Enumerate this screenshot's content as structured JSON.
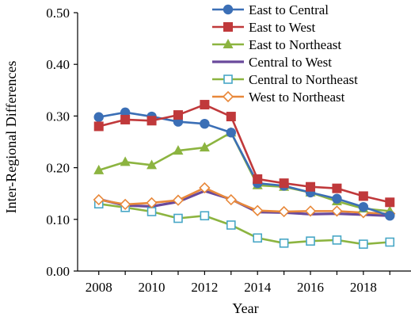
{
  "chart_data": {
    "type": "line",
    "xlabel": "Year",
    "ylabel": "Inter-Regional Differences",
    "x": [
      2008,
      2009,
      2010,
      2011,
      2012,
      2013,
      2014,
      2015,
      2016,
      2017,
      2018,
      2019
    ],
    "xlim": [
      2007.2,
      2019.8
    ],
    "ylim": [
      0,
      0.5
    ],
    "x_ticks": [
      "2008",
      "2010",
      "2012",
      "2014",
      "2016",
      "2018"
    ],
    "y_ticks": [
      "0.00",
      "0.10",
      "0.20",
      "0.30",
      "0.40",
      "0.50"
    ],
    "grid": false,
    "legend_position": "top-right",
    "series": [
      {
        "name": "East to Central",
        "color": "#3B6FB6",
        "marker": "circle",
        "values": [
          0.298,
          0.307,
          0.299,
          0.289,
          0.285,
          0.268,
          0.17,
          0.165,
          0.152,
          0.14,
          0.124,
          0.107
        ]
      },
      {
        "name": "East to West",
        "color": "#C0393B",
        "marker": "square",
        "values": [
          0.28,
          0.293,
          0.291,
          0.302,
          0.322,
          0.299,
          0.178,
          0.17,
          0.163,
          0.16,
          0.145,
          0.133
        ]
      },
      {
        "name": "East to Northeast",
        "color": "#8CB440",
        "marker": "triangle",
        "values": [
          0.195,
          0.211,
          0.205,
          0.233,
          0.239,
          0.268,
          0.166,
          0.163,
          0.152,
          0.135,
          0.121,
          0.116
        ]
      },
      {
        "name": "Central to West",
        "color": "#6A4A9C",
        "marker": "none",
        "values": [
          0.139,
          0.127,
          0.125,
          0.134,
          0.155,
          0.139,
          0.114,
          0.113,
          0.11,
          0.111,
          0.109,
          0.107
        ]
      },
      {
        "name": "Central to Northeast",
        "color": "#48A7C6",
        "marker": "square-open",
        "line_color": "#8CB440",
        "values": [
          0.13,
          0.123,
          0.115,
          0.102,
          0.107,
          0.089,
          0.064,
          0.054,
          0.058,
          0.06,
          0.052,
          0.056
        ]
      },
      {
        "name": "West to Northeast",
        "color": "#E8883A",
        "marker": "diamond-open",
        "values": [
          0.138,
          0.129,
          0.132,
          0.137,
          0.161,
          0.138,
          0.117,
          0.115,
          0.116,
          0.116,
          0.113,
          0.111
        ]
      }
    ]
  }
}
